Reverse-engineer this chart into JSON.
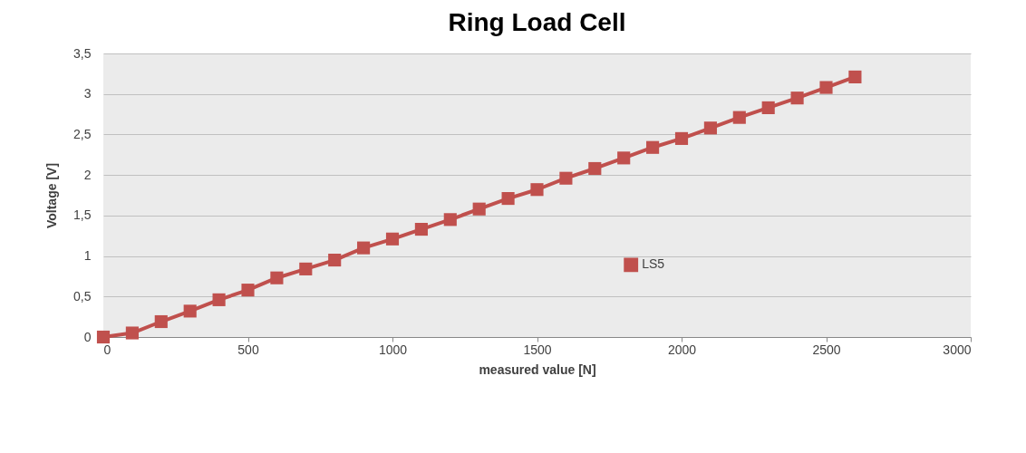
{
  "chart_data": {
    "type": "line",
    "title": "Ring Load Cell",
    "xlabel": "measured value [N]",
    "ylabel": "Voltage [V]",
    "x": [
      0,
      100,
      200,
      300,
      400,
      500,
      600,
      700,
      800,
      900,
      1000,
      1100,
      1200,
      1300,
      1400,
      1500,
      1600,
      1700,
      1800,
      1900,
      2000,
      2100,
      2200,
      2300,
      2400,
      2500,
      2600
    ],
    "series": [
      {
        "name": "LS5",
        "color": "#c0504d",
        "values": [
          0,
          0.05,
          0.19,
          0.32,
          0.46,
          0.58,
          0.73,
          0.84,
          0.95,
          1.1,
          1.21,
          1.33,
          1.45,
          1.58,
          1.71,
          1.82,
          1.96,
          2.08,
          2.21,
          2.34,
          2.45,
          2.58,
          2.71,
          2.83,
          2.95,
          3.08,
          3.21
        ]
      }
    ],
    "xlim": [
      0,
      3000
    ],
    "xticks": [
      0,
      500,
      1000,
      1500,
      2000,
      2500,
      3000
    ],
    "ylim": [
      0,
      3.5
    ],
    "yticks": [
      0,
      {
        "value": 0.5,
        "label": "0,5"
      },
      1,
      {
        "value": 1.5,
        "label": "1,5"
      },
      2,
      {
        "value": 2.5,
        "label": "2,5"
      },
      3,
      {
        "value": 3.5,
        "label": "3,5"
      }
    ],
    "grid": "y",
    "legend": "center",
    "marker": "square",
    "line_style": "solid"
  }
}
